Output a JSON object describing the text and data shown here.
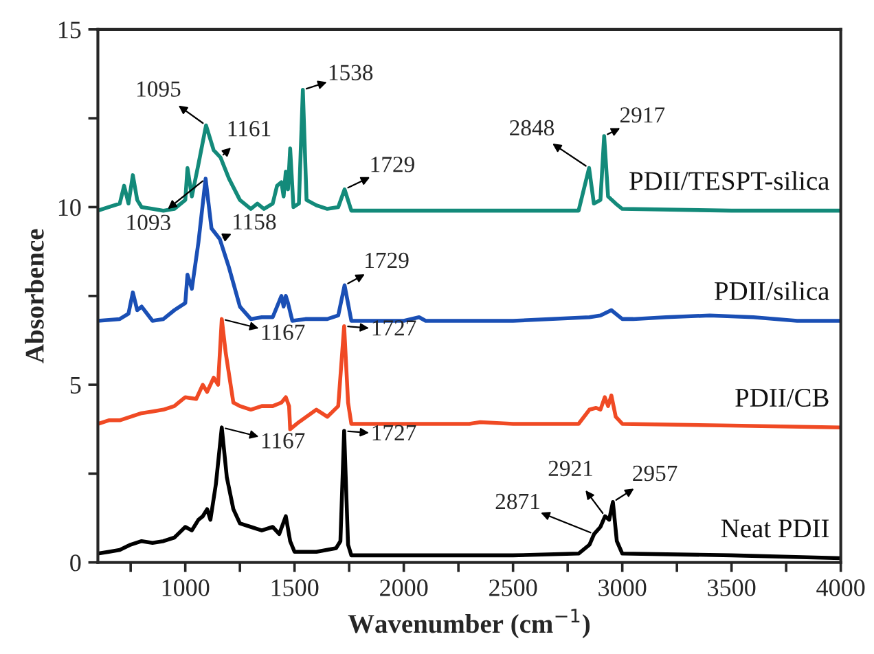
{
  "chart_data": {
    "type": "line",
    "xlabel": "Wavenumber (cm$^{−1}$)",
    "ylabel": "Absorbence",
    "xlim": [
      600,
      4000
    ],
    "ylim": [
      0,
      15
    ],
    "xticks": [
      {
        "value": 750,
        "label": null
      },
      1000,
      {
        "value": 1250,
        "label": null
      },
      1500,
      {
        "value": 1750,
        "label": null
      },
      2000,
      {
        "value": 2250,
        "label": null
      },
      2500,
      {
        "value": 2750,
        "label": null
      },
      3000,
      {
        "value": 3250,
        "label": null
      },
      3500,
      {
        "value": 3750,
        "label": null
      },
      4000
    ],
    "yticks": [
      0,
      {
        "value": 2.5,
        "label": null
      },
      5,
      {
        "value": 7.5,
        "label": null
      },
      10,
      {
        "value": 12.5,
        "label": null
      },
      15
    ],
    "grid": false,
    "legend": false,
    "marker": "none",
    "line_style": "solid",
    "series": [
      {
        "name": "PDII/TESPT-silica",
        "color": "#138a7a",
        "x": [
          600,
          650,
          700,
          720,
          740,
          760,
          780,
          800,
          850,
          900,
          950,
          1000,
          1010,
          1030,
          1060,
          1095,
          1130,
          1161,
          1200,
          1250,
          1300,
          1330,
          1360,
          1400,
          1420,
          1440,
          1450,
          1460,
          1470,
          1480,
          1495,
          1520,
          1538,
          1555,
          1600,
          1650,
          1700,
          1729,
          1760,
          2000,
          2500,
          2800,
          2848,
          2870,
          2900,
          2917,
          2935,
          2970,
          3000,
          3500,
          4000
        ],
        "values": [
          9.9,
          10.0,
          10.1,
          10.6,
          10.1,
          10.9,
          10.2,
          10.0,
          9.95,
          9.9,
          9.95,
          10.2,
          11.1,
          10.3,
          11.2,
          12.3,
          11.6,
          11.4,
          10.8,
          10.2,
          9.95,
          10.1,
          9.95,
          10.1,
          10.6,
          10.7,
          10.3,
          11.0,
          10.5,
          11.65,
          10.0,
          10.1,
          13.3,
          10.2,
          10.05,
          9.95,
          10.0,
          10.5,
          9.9,
          9.9,
          9.9,
          9.9,
          11.1,
          10.1,
          10.2,
          12.0,
          10.3,
          10.1,
          9.95,
          9.9,
          9.9
        ]
      },
      {
        "name": "PDII/silica",
        "color": "#1a4fb5",
        "x": [
          600,
          700,
          740,
          760,
          780,
          800,
          850,
          900,
          950,
          1000,
          1010,
          1030,
          1060,
          1093,
          1120,
          1158,
          1200,
          1250,
          1300,
          1350,
          1400,
          1440,
          1450,
          1460,
          1470,
          1490,
          1550,
          1650,
          1700,
          1729,
          1760,
          2000,
          2070,
          2100,
          2500,
          2850,
          2900,
          2950,
          3000,
          3050,
          3200,
          3400,
          3600,
          3800,
          4000
        ],
        "values": [
          6.8,
          6.85,
          7.0,
          7.6,
          7.1,
          7.2,
          6.8,
          6.85,
          7.1,
          7.3,
          8.1,
          7.7,
          9.0,
          10.8,
          9.4,
          9.1,
          8.3,
          7.2,
          6.85,
          6.9,
          6.9,
          7.5,
          7.2,
          7.5,
          7.3,
          6.8,
          6.85,
          6.85,
          6.95,
          7.8,
          6.8,
          6.8,
          6.9,
          6.8,
          6.8,
          6.9,
          6.95,
          7.1,
          6.85,
          6.85,
          6.9,
          6.95,
          6.9,
          6.8,
          6.8
        ]
      },
      {
        "name": "PDII/CB",
        "color": "#f04a24",
        "x": [
          600,
          650,
          700,
          750,
          800,
          850,
          900,
          950,
          1000,
          1050,
          1080,
          1100,
          1130,
          1150,
          1167,
          1185,
          1220,
          1250,
          1300,
          1350,
          1400,
          1440,
          1460,
          1475,
          1480,
          1520,
          1600,
          1650,
          1700,
          1727,
          1745,
          1760,
          2000,
          2300,
          2350,
          2500,
          2800,
          2850,
          2880,
          2900,
          2920,
          2935,
          2950,
          2970,
          3000,
          3500,
          4000
        ],
        "values": [
          3.9,
          4.0,
          4.0,
          4.1,
          4.2,
          4.25,
          4.3,
          4.4,
          4.65,
          4.6,
          5.0,
          4.8,
          5.2,
          5.0,
          6.85,
          5.9,
          4.5,
          4.4,
          4.3,
          4.4,
          4.4,
          4.5,
          4.65,
          4.4,
          3.75,
          3.95,
          4.3,
          4.1,
          4.4,
          6.65,
          4.5,
          3.9,
          3.9,
          3.9,
          3.95,
          3.9,
          3.9,
          4.3,
          4.35,
          4.3,
          4.65,
          4.4,
          4.7,
          4.1,
          3.9,
          3.85,
          3.8
        ]
      },
      {
        "name": "Neat PDII",
        "color": "#000000",
        "x": [
          600,
          650,
          700,
          750,
          800,
          850,
          900,
          950,
          1000,
          1030,
          1060,
          1080,
          1100,
          1115,
          1140,
          1167,
          1190,
          1220,
          1250,
          1300,
          1350,
          1400,
          1430,
          1460,
          1480,
          1500,
          1600,
          1690,
          1710,
          1727,
          1745,
          1760,
          2000,
          2500,
          2800,
          2850,
          2871,
          2900,
          2921,
          2940,
          2957,
          2975,
          3000,
          3500,
          4000
        ],
        "values": [
          0.25,
          0.3,
          0.35,
          0.5,
          0.6,
          0.55,
          0.6,
          0.7,
          1.0,
          0.9,
          1.2,
          1.3,
          1.5,
          1.2,
          2.2,
          3.8,
          2.4,
          1.5,
          1.1,
          1.0,
          0.9,
          1.0,
          0.8,
          1.3,
          0.6,
          0.3,
          0.3,
          0.4,
          0.6,
          3.7,
          0.5,
          0.2,
          0.2,
          0.2,
          0.25,
          0.5,
          0.8,
          1.0,
          1.3,
          1.2,
          1.7,
          0.6,
          0.25,
          0.2,
          0.12
        ]
      }
    ],
    "annotations": [
      {
        "text": "1095",
        "x": 1095,
        "y": 12.3
      },
      {
        "text": "1161",
        "x": 1161,
        "y": 11.4
      },
      {
        "text": "1538",
        "x": 1538,
        "y": 13.3
      },
      {
        "text": "1729",
        "x": 1729,
        "y": 10.5
      },
      {
        "text": "2848",
        "x": 2848,
        "y": 11.1
      },
      {
        "text": "2917",
        "x": 2917,
        "y": 12.0
      },
      {
        "text": "1093",
        "x": 1093,
        "y": 10.8
      },
      {
        "text": "1158",
        "x": 1158,
        "y": 9.1
      },
      {
        "text": "1729",
        "x": 1729,
        "y": 7.8
      },
      {
        "text": "1167",
        "x": 1167,
        "y": 6.85
      },
      {
        "text": "1727",
        "x": 1727,
        "y": 6.65
      },
      {
        "text": "1167",
        "x": 1167,
        "y": 3.8
      },
      {
        "text": "1727",
        "x": 1727,
        "y": 3.7
      },
      {
        "text": "2871",
        "x": 2871,
        "y": 0.8
      },
      {
        "text": "2921",
        "x": 2921,
        "y": 1.3
      },
      {
        "text": "2957",
        "x": 2957,
        "y": 1.7
      }
    ]
  }
}
